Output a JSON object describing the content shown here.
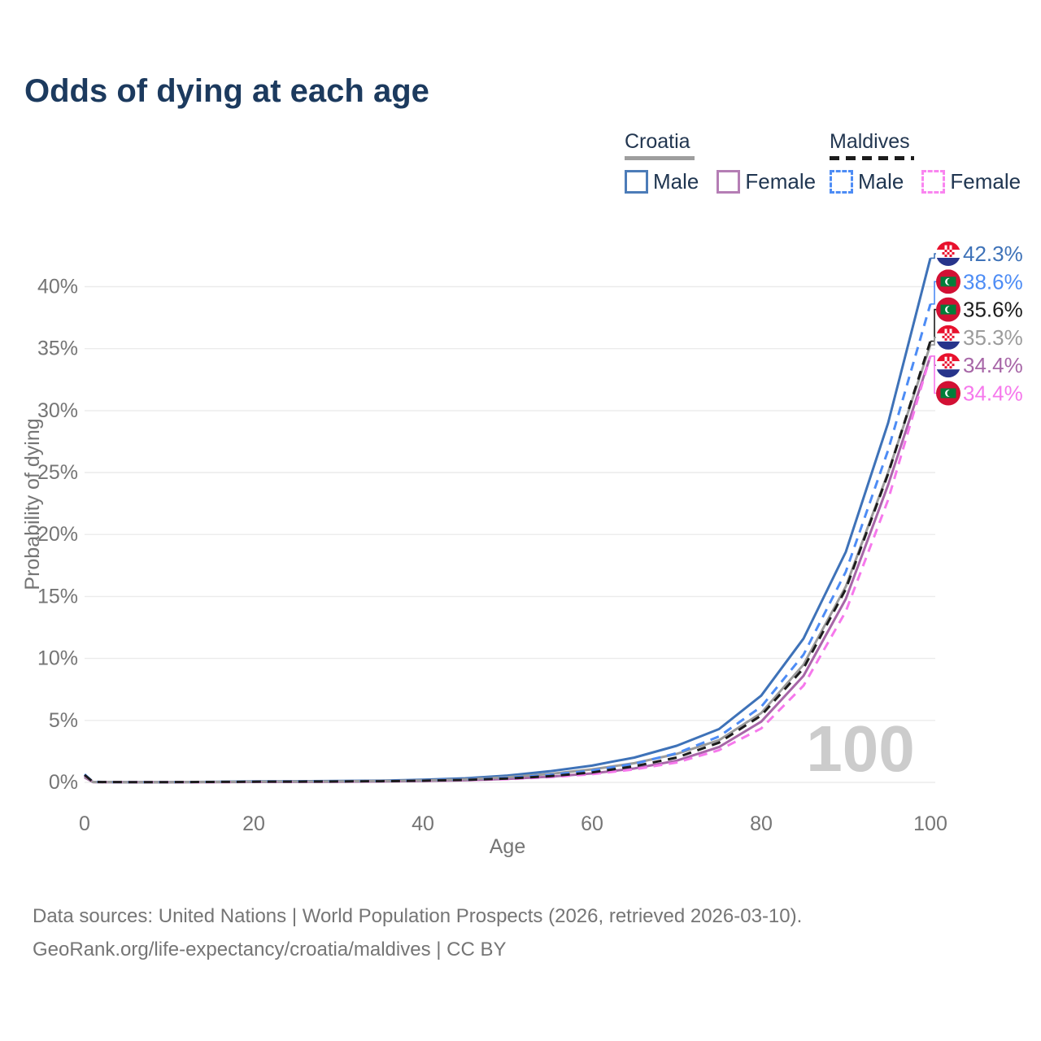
{
  "title": "Odds of dying at each age",
  "legend": {
    "groups": [
      {
        "name": "Croatia",
        "style": "solid",
        "underline_color": "#9e9e9e",
        "underline_width": 86,
        "items": [
          {
            "label": "Male",
            "color": "#4c7cb8",
            "dash": false
          },
          {
            "label": "Female",
            "color": "#b57eb5",
            "dash": false
          }
        ]
      },
      {
        "name": "Maldives",
        "style": "dashed",
        "underline_color": "#1c1c1c",
        "underline_width": 104,
        "items": [
          {
            "label": "Male",
            "color": "#4d8cf5",
            "dash": true
          },
          {
            "label": "Female",
            "color": "#f985f0",
            "dash": true
          }
        ]
      }
    ]
  },
  "chart_data": {
    "type": "line",
    "title": "Odds of dying at each age",
    "xlabel": "Age",
    "ylabel": "Probability of dying",
    "xlim": [
      0,
      100
    ],
    "ylim_pct": [
      0,
      43
    ],
    "x_ticks": [
      0,
      20,
      40,
      60,
      80,
      100
    ],
    "y_ticks": [
      0,
      5,
      10,
      15,
      20,
      25,
      30,
      35,
      40
    ],
    "y_tick_suffix": "%",
    "grid": "horizontal",
    "legend_position": "top-right",
    "watermark": "100",
    "series": [
      {
        "id": "croatia-male",
        "name": "Croatia Male",
        "flag": "hr",
        "color": "#3e72b8",
        "dash": false,
        "end_label": "42.3%",
        "points": [
          [
            0,
            0.5
          ],
          [
            1,
            0.03
          ],
          [
            5,
            0.02
          ],
          [
            10,
            0.02
          ],
          [
            15,
            0.04
          ],
          [
            20,
            0.08
          ],
          [
            25,
            0.09
          ],
          [
            30,
            0.11
          ],
          [
            35,
            0.14
          ],
          [
            40,
            0.21
          ],
          [
            45,
            0.33
          ],
          [
            50,
            0.55
          ],
          [
            55,
            0.9
          ],
          [
            60,
            1.35
          ],
          [
            62,
            1.62
          ],
          [
            65,
            2.0
          ],
          [
            70,
            2.95
          ],
          [
            75,
            4.3
          ],
          [
            80,
            7.0
          ],
          [
            85,
            11.6
          ],
          [
            90,
            18.6
          ],
          [
            95,
            29.0
          ],
          [
            100,
            42.3
          ]
        ]
      },
      {
        "id": "croatia-female",
        "name": "Croatia Female",
        "flag": "hr",
        "color": "#a766a7",
        "dash": false,
        "end_label": "34.4%",
        "points": [
          [
            0,
            0.4
          ],
          [
            1,
            0.02
          ],
          [
            5,
            0.01
          ],
          [
            10,
            0.01
          ],
          [
            15,
            0.02
          ],
          [
            20,
            0.03
          ],
          [
            25,
            0.04
          ],
          [
            30,
            0.05
          ],
          [
            35,
            0.07
          ],
          [
            40,
            0.11
          ],
          [
            45,
            0.17
          ],
          [
            50,
            0.28
          ],
          [
            55,
            0.46
          ],
          [
            60,
            0.72
          ],
          [
            65,
            1.12
          ],
          [
            70,
            1.75
          ],
          [
            75,
            2.85
          ],
          [
            80,
            4.9
          ],
          [
            85,
            8.6
          ],
          [
            90,
            14.8
          ],
          [
            95,
            24.0
          ],
          [
            100,
            34.4
          ]
        ]
      },
      {
        "id": "croatia-both",
        "name": "Croatia (both sexes)",
        "flag": "hr",
        "color": "#9b9b9b",
        "dash": false,
        "end_label": "35.3%",
        "points": [
          [
            0,
            0.45
          ],
          [
            1,
            0.03
          ],
          [
            5,
            0.02
          ],
          [
            10,
            0.02
          ],
          [
            15,
            0.03
          ],
          [
            20,
            0.06
          ],
          [
            25,
            0.07
          ],
          [
            30,
            0.08
          ],
          [
            35,
            0.11
          ],
          [
            40,
            0.16
          ],
          [
            45,
            0.25
          ],
          [
            50,
            0.42
          ],
          [
            55,
            0.68
          ],
          [
            60,
            1.05
          ],
          [
            62,
            1.25
          ],
          [
            65,
            1.55
          ],
          [
            70,
            2.3
          ],
          [
            75,
            3.4
          ],
          [
            80,
            5.6
          ],
          [
            85,
            9.5
          ],
          [
            90,
            15.8
          ],
          [
            95,
            25.0
          ],
          [
            100,
            35.3
          ]
        ]
      },
      {
        "id": "maldives-male",
        "name": "Maldives Male",
        "flag": "mv",
        "color": "#4d8cf5",
        "dash": true,
        "end_label": "38.6%",
        "points": [
          [
            0,
            0.65
          ],
          [
            1,
            0.04
          ],
          [
            5,
            0.02
          ],
          [
            10,
            0.02
          ],
          [
            15,
            0.03
          ],
          [
            20,
            0.06
          ],
          [
            25,
            0.07
          ],
          [
            30,
            0.08
          ],
          [
            35,
            0.1
          ],
          [
            40,
            0.15
          ],
          [
            45,
            0.23
          ],
          [
            50,
            0.37
          ],
          [
            55,
            0.6
          ],
          [
            60,
            0.95
          ],
          [
            65,
            1.5
          ],
          [
            70,
            2.35
          ],
          [
            75,
            3.7
          ],
          [
            80,
            6.1
          ],
          [
            85,
            10.3
          ],
          [
            90,
            17.0
          ],
          [
            95,
            26.8
          ],
          [
            100,
            38.6
          ]
        ]
      },
      {
        "id": "maldives-female",
        "name": "Maldives Female",
        "flag": "mv",
        "color": "#f678ec",
        "dash": true,
        "end_label": "34.4%",
        "points": [
          [
            0,
            0.55
          ],
          [
            1,
            0.03
          ],
          [
            5,
            0.02
          ],
          [
            10,
            0.01
          ],
          [
            15,
            0.02
          ],
          [
            20,
            0.04
          ],
          [
            25,
            0.05
          ],
          [
            30,
            0.06
          ],
          [
            35,
            0.08
          ],
          [
            40,
            0.11
          ],
          [
            45,
            0.17
          ],
          [
            50,
            0.26
          ],
          [
            55,
            0.42
          ],
          [
            60,
            0.66
          ],
          [
            65,
            1.05
          ],
          [
            70,
            1.6
          ],
          [
            75,
            2.6
          ],
          [
            80,
            4.35
          ],
          [
            85,
            7.8
          ],
          [
            90,
            13.8
          ],
          [
            95,
            22.8
          ],
          [
            100,
            34.4
          ]
        ]
      },
      {
        "id": "maldives-both",
        "name": "Maldives (both sexes)",
        "flag": "mv",
        "color": "#1c1c1c",
        "dash": true,
        "end_label": "35.6%",
        "points": [
          [
            0,
            0.6
          ],
          [
            1,
            0.03
          ],
          [
            5,
            0.02
          ],
          [
            10,
            0.02
          ],
          [
            15,
            0.03
          ],
          [
            20,
            0.05
          ],
          [
            25,
            0.06
          ],
          [
            30,
            0.07
          ],
          [
            35,
            0.09
          ],
          [
            40,
            0.13
          ],
          [
            45,
            0.2
          ],
          [
            50,
            0.31
          ],
          [
            55,
            0.5
          ],
          [
            60,
            0.8
          ],
          [
            65,
            1.3
          ],
          [
            70,
            2.0
          ],
          [
            75,
            3.2
          ],
          [
            80,
            5.4
          ],
          [
            85,
            9.2
          ],
          [
            90,
            15.6
          ],
          [
            95,
            24.9
          ],
          [
            100,
            35.6
          ]
        ]
      }
    ],
    "flag_colors": {
      "croatia_red": "#e8112d",
      "croatia_blue": "#27348b",
      "maldives_red": "#d21034",
      "maldives_green": "#007e3a"
    },
    "style": {
      "grid_color": "#ebebeb",
      "tick_color": "#757575",
      "watermark_color": "#cccccc",
      "line_width": 3
    }
  },
  "footer": {
    "line1": "Data sources: United Nations | World Population Prospects (2026, retrieved 2026-03-10).",
    "line2": "GeoRank.org/life-expectancy/croatia/maldives | CC BY"
  }
}
